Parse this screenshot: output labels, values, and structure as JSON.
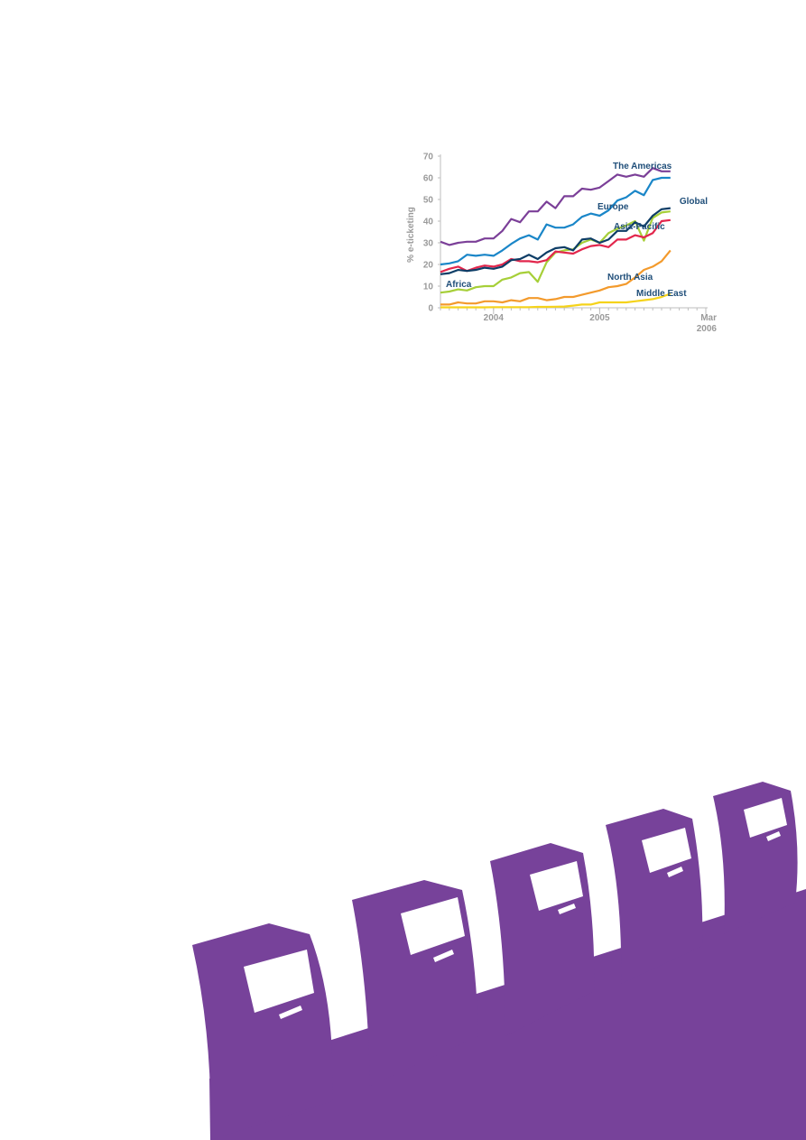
{
  "chart_data": {
    "type": "line",
    "ylabel": "% e-ticketing",
    "ylim": [
      0,
      70
    ],
    "yticks": [
      "0",
      "10",
      "20",
      "30",
      "40",
      "50",
      "60",
      "70"
    ],
    "x_start": "2003-09",
    "x_end": "2006-03",
    "xticks": [
      {
        "date": "2004-03",
        "label": "2004"
      },
      {
        "date": "2005-03",
        "label": "2005"
      },
      {
        "date": "2006-03",
        "label": "Mar",
        "label2": "2006"
      }
    ],
    "x": [
      "2003-09",
      "2003-10",
      "2003-11",
      "2003-12",
      "2004-01",
      "2004-02",
      "2004-03",
      "2004-04",
      "2004-05",
      "2004-06",
      "2004-07",
      "2004-08",
      "2004-09",
      "2004-10",
      "2004-11",
      "2004-12",
      "2005-01",
      "2005-02",
      "2005-03",
      "2005-04",
      "2005-05",
      "2005-06",
      "2005-07",
      "2005-08",
      "2005-09",
      "2005-10",
      "2005-11",
      "2005-12",
      "2006-01",
      "2006-02",
      "2006-03"
    ],
    "series": [
      {
        "name": "The Americas",
        "color": "#7b3f98",
        "values": [
          30.5,
          29,
          30,
          30.5,
          30.5,
          32,
          32,
          35.5,
          41,
          39.5,
          44.5,
          44.5,
          49,
          46,
          51.5,
          51.5,
          55,
          54.5,
          55.5,
          58.5,
          61.5,
          60.5,
          61.5,
          60.5,
          64.5,
          63,
          63,
          null,
          null,
          null,
          null
        ]
      },
      {
        "name": "Europe",
        "color": "#1a86c8",
        "values": [
          20,
          20.5,
          21.5,
          24.5,
          24,
          24.5,
          24,
          26.5,
          29.5,
          32,
          33.5,
          31.5,
          38.5,
          37,
          37,
          38.5,
          42,
          43.5,
          42.5,
          45,
          49.5,
          51,
          54,
          52,
          59,
          60,
          60,
          null,
          null,
          null,
          null
        ]
      },
      {
        "name": "Global",
        "color": "#0d3d66",
        "values": [
          15.5,
          16,
          17.5,
          17,
          17.5,
          18.5,
          18,
          19,
          22,
          22.5,
          24.5,
          22.5,
          25.5,
          27.5,
          28,
          26.5,
          31.5,
          32,
          30,
          31.5,
          35.5,
          35.5,
          39.5,
          37.5,
          42.5,
          45.5,
          46,
          null,
          null,
          null,
          null
        ]
      },
      {
        "name": "Asia-Pacific",
        "color": "#e2264c",
        "values": [
          16.5,
          18,
          19,
          17,
          18.5,
          19.5,
          19,
          20,
          22.5,
          21.5,
          21.5,
          21,
          22,
          26,
          25.5,
          25,
          27,
          28.5,
          29,
          28,
          31.5,
          31.5,
          33.5,
          32.5,
          34.5,
          40,
          40.5,
          null,
          null,
          null,
          null
        ]
      },
      {
        "name": "Africa",
        "color": "#a6cf38",
        "values": [
          7,
          7.5,
          8.5,
          8,
          9.5,
          10,
          10,
          13,
          14,
          16,
          16.5,
          12,
          21,
          25.5,
          26.5,
          27,
          30,
          31.5,
          30,
          34.5,
          36.5,
          38,
          40,
          31,
          41.5,
          44,
          44.5,
          null,
          null,
          null,
          null
        ]
      },
      {
        "name": "North Asia",
        "color": "#f39a2c",
        "values": [
          1.5,
          1.5,
          2.5,
          2,
          2,
          3,
          3,
          2.5,
          3.5,
          3,
          4.5,
          4.5,
          3.5,
          4,
          5,
          5,
          6,
          7,
          8,
          9.5,
          10,
          11,
          14,
          17.5,
          19,
          21.5,
          26.5,
          null,
          null,
          null,
          null
        ]
      },
      {
        "name": "Middle East",
        "color": "#f5d31b",
        "values": [
          0.2,
          0.2,
          0.2,
          0.2,
          0.2,
          0.2,
          0.3,
          0.3,
          0.3,
          0.3,
          0.3,
          0.4,
          0.4,
          0.5,
          0.6,
          1,
          1.5,
          1.5,
          2.5,
          2.5,
          2.5,
          2.5,
          3,
          3.5,
          4,
          5,
          6.5,
          null,
          null,
          null,
          null
        ]
      }
    ]
  },
  "decor": {
    "kiosk_color": "#77429a"
  }
}
